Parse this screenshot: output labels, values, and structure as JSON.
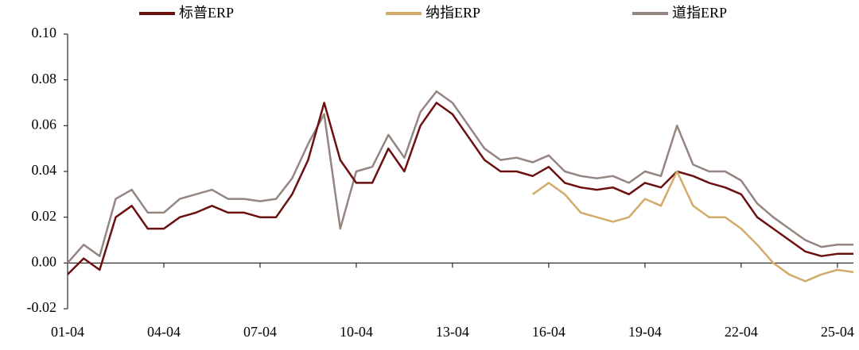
{
  "chart_data": {
    "type": "line",
    "categories": [
      "01-04",
      null,
      null,
      null,
      null,
      null,
      "04-04",
      null,
      null,
      null,
      null,
      null,
      "07-04",
      null,
      null,
      null,
      null,
      null,
      "10-04",
      null,
      null,
      null,
      null,
      null,
      "13-04",
      null,
      null,
      null,
      null,
      null,
      "16-04",
      null,
      null,
      null,
      null,
      null,
      "19-04",
      null,
      null,
      null,
      null,
      null,
      "22-04",
      null,
      null,
      null,
      null,
      null,
      "25-04",
      null
    ],
    "series": [
      {
        "name": "标普ERP",
        "color": "#6b0f0f",
        "values": [
          -0.005,
          0.002,
          -0.003,
          0.02,
          0.025,
          0.015,
          0.015,
          0.02,
          0.022,
          0.025,
          0.022,
          0.022,
          0.02,
          0.02,
          0.03,
          0.045,
          0.07,
          0.045,
          0.035,
          0.035,
          0.05,
          0.04,
          0.06,
          0.07,
          0.065,
          0.055,
          0.045,
          0.04,
          0.04,
          0.038,
          0.042,
          0.035,
          0.033,
          0.032,
          0.033,
          0.03,
          0.035,
          0.033,
          0.04,
          0.038,
          0.035,
          0.033,
          0.03,
          0.02,
          0.015,
          0.01,
          0.005,
          0.003,
          0.004,
          0.004
        ]
      },
      {
        "name": "纳指ERP",
        "color": "#d4aa6a",
        "values": [
          null,
          null,
          null,
          null,
          null,
          null,
          null,
          null,
          null,
          null,
          null,
          null,
          null,
          null,
          null,
          null,
          null,
          null,
          null,
          null,
          null,
          null,
          null,
          null,
          null,
          null,
          null,
          null,
          null,
          0.03,
          0.035,
          0.03,
          0.022,
          0.02,
          0.018,
          0.02,
          0.028,
          0.025,
          0.04,
          0.025,
          0.02,
          0.02,
          0.015,
          0.008,
          0.0,
          -0.005,
          -0.008,
          -0.005,
          -0.003,
          -0.004
        ]
      },
      {
        "name": "道指ERP",
        "color": "#958580",
        "values": [
          0.0,
          0.008,
          0.003,
          0.028,
          0.032,
          0.022,
          0.022,
          0.028,
          0.03,
          0.032,
          0.028,
          0.028,
          0.027,
          0.028,
          0.037,
          0.052,
          0.065,
          0.015,
          0.04,
          0.042,
          0.056,
          0.046,
          0.066,
          0.075,
          0.07,
          0.06,
          0.05,
          0.045,
          0.046,
          0.044,
          0.047,
          0.04,
          0.038,
          0.037,
          0.038,
          0.035,
          0.04,
          0.038,
          0.06,
          0.043,
          0.04,
          0.04,
          0.036,
          0.026,
          0.02,
          0.015,
          0.01,
          0.007,
          0.008,
          0.008
        ]
      }
    ],
    "ylim": [
      -0.02,
      0.1
    ],
    "yticks": [
      {
        "value": -0.02,
        "label": "-0.02"
      },
      {
        "value": 0.0,
        "label": "0.00"
      },
      {
        "value": 0.02,
        "label": "0.02"
      },
      {
        "value": 0.04,
        "label": "0.04"
      },
      {
        "value": 0.06,
        "label": "0.06"
      },
      {
        "value": 0.08,
        "label": "0.08"
      },
      {
        "value": 0.1,
        "label": "0.10"
      }
    ]
  }
}
